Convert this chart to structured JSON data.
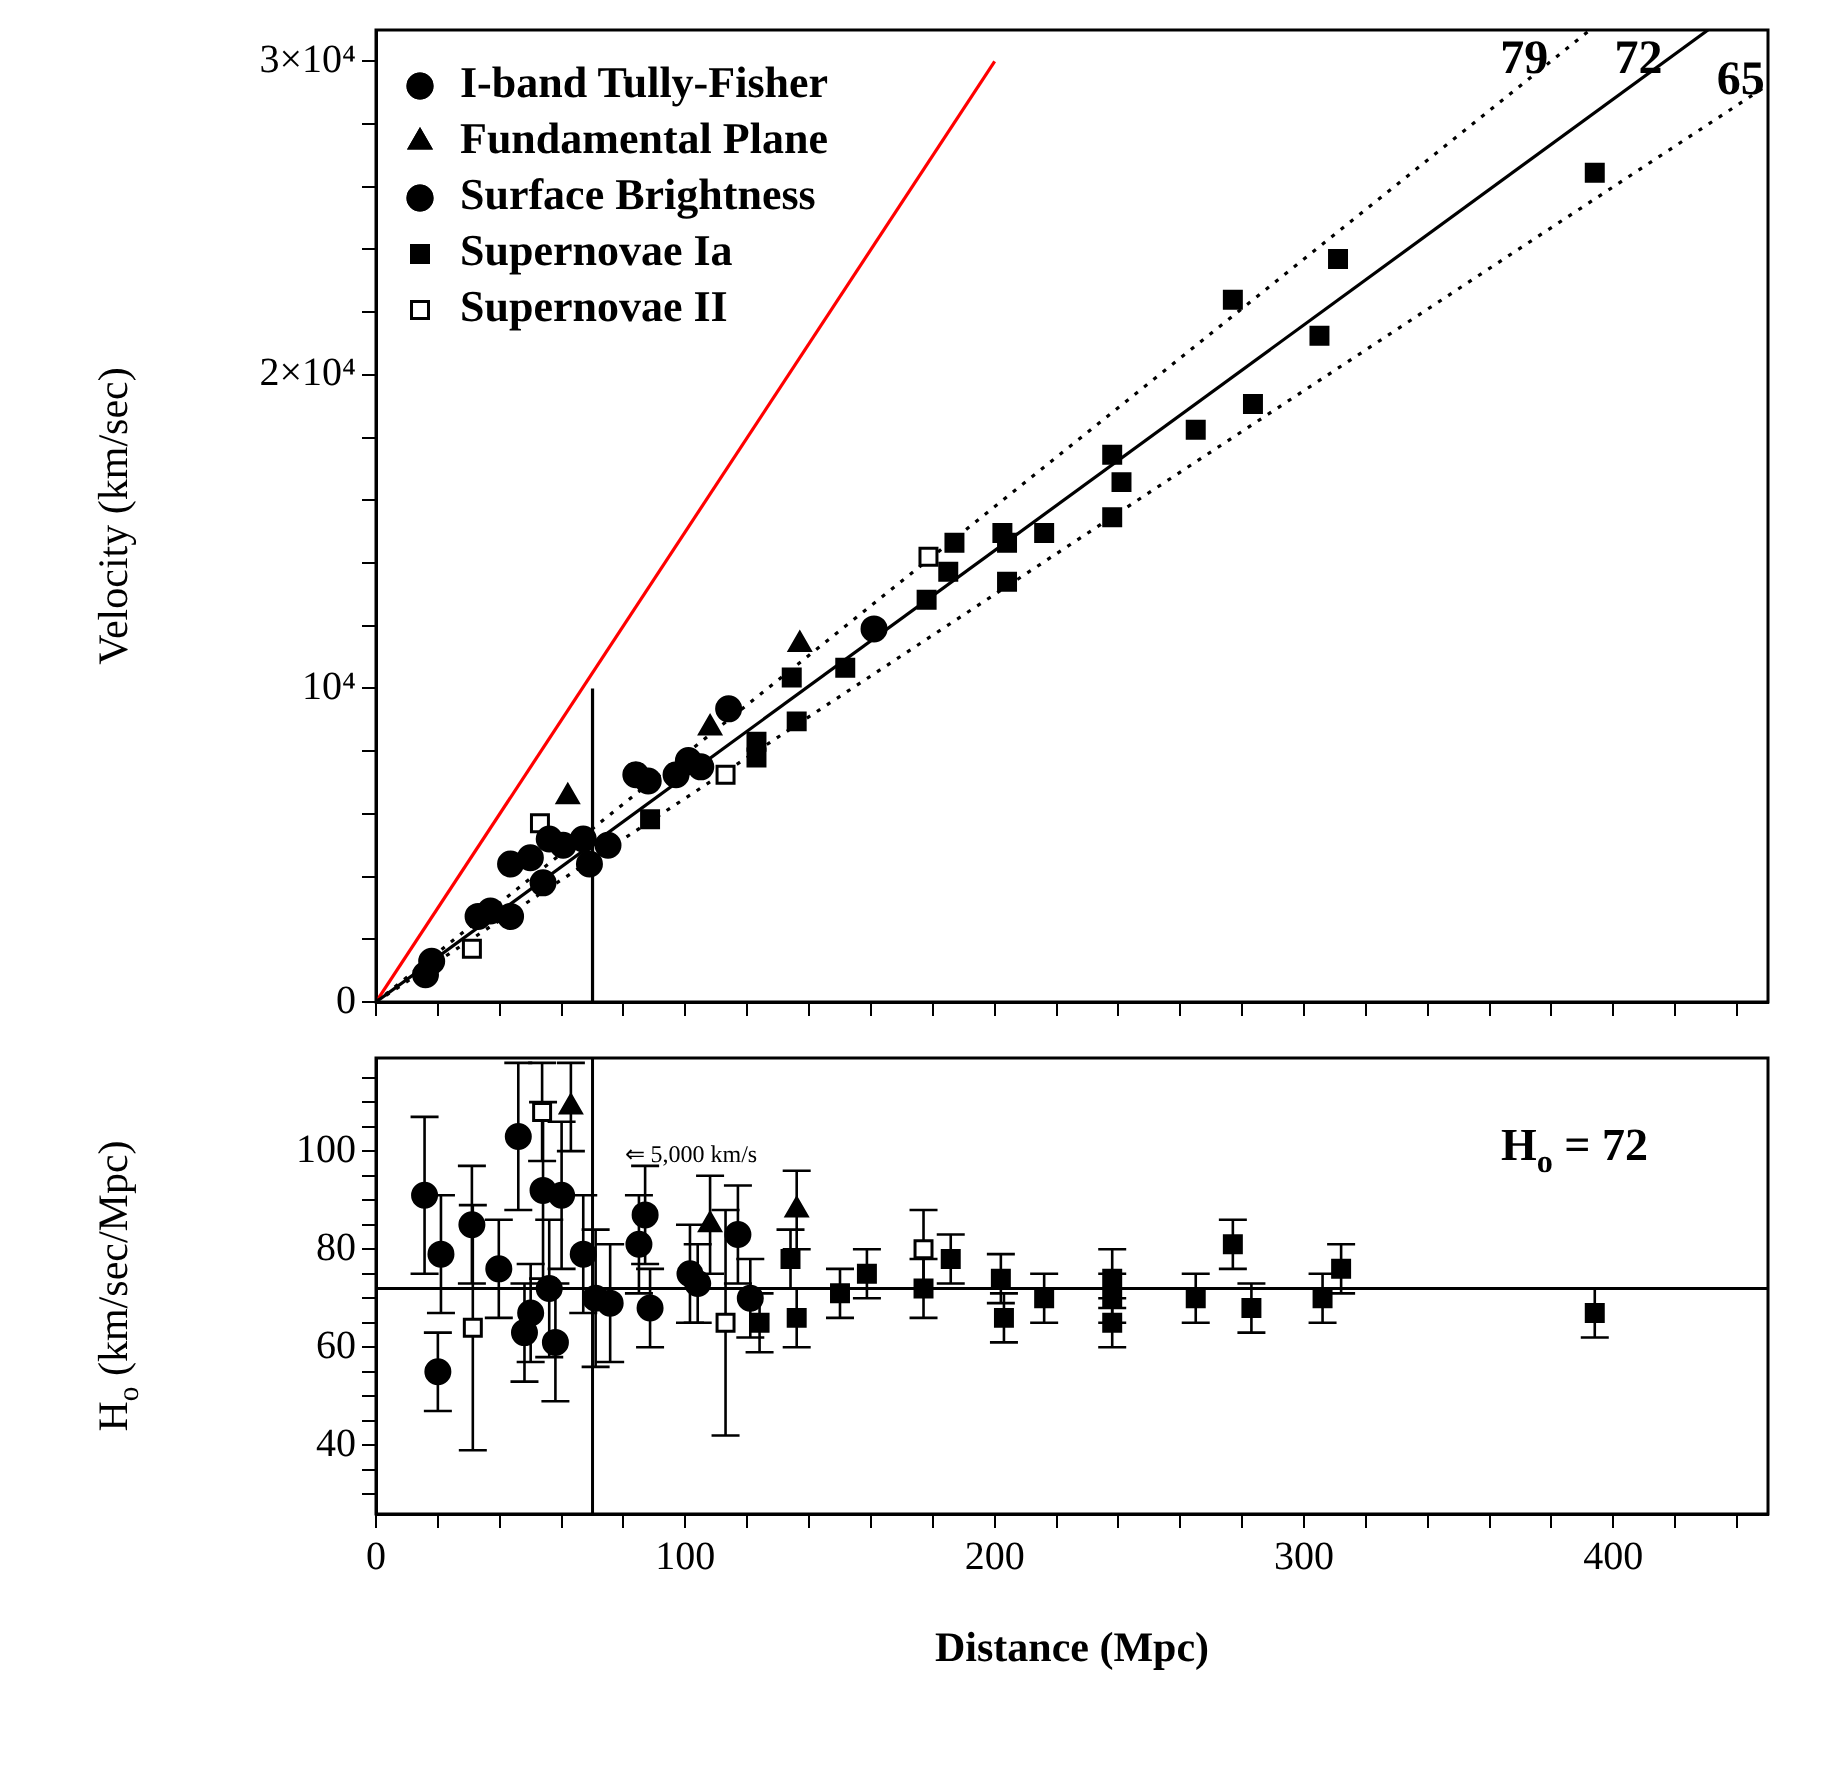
{
  "chart_data": [
    {
      "type": "scatter",
      "ylabel": "Velocity (km/sec)",
      "xlim": [
        0,
        450
      ],
      "ylim": [
        0,
        31000
      ],
      "xticks": [
        0,
        {
          "value": 20,
          "label": null
        },
        {
          "value": 40,
          "label": null
        },
        {
          "value": 60,
          "label": null
        },
        {
          "value": 80,
          "label": null
        },
        100,
        {
          "value": 120,
          "label": null
        },
        {
          "value": 140,
          "label": null
        },
        {
          "value": 160,
          "label": null
        },
        {
          "value": 180,
          "label": null
        },
        200,
        {
          "value": 220,
          "label": null
        },
        {
          "value": 240,
          "label": null
        },
        {
          "value": 260,
          "label": null
        },
        {
          "value": 280,
          "label": null
        },
        300,
        {
          "value": 320,
          "label": null
        },
        {
          "value": 340,
          "label": null
        },
        {
          "value": 360,
          "label": null
        },
        {
          "value": 380,
          "label": null
        },
        400,
        {
          "value": 420,
          "label": null
        },
        {
          "value": 440,
          "label": null
        }
      ],
      "yticks": [
        0,
        {
          "value": 2000,
          "label": null
        },
        {
          "value": 4000,
          "label": null
        },
        {
          "value": 6000,
          "label": null
        },
        {
          "value": 8000,
          "label": null
        },
        {
          "value": 10000,
          "label": "10⁴"
        },
        {
          "value": 12000,
          "label": null
        },
        {
          "value": 14000,
          "label": null
        },
        {
          "value": 16000,
          "label": null
        },
        {
          "value": 18000,
          "label": null
        },
        {
          "value": 20000,
          "label": "2×10⁴"
        },
        {
          "value": 22000,
          "label": null
        },
        {
          "value": 24000,
          "label": null
        },
        {
          "value": 26000,
          "label": null
        },
        {
          "value": 28000,
          "label": null
        },
        {
          "value": 30000,
          "label": "3×10⁴"
        }
      ],
      "tick_labels": "y",
      "legend": "top left",
      "annotations": [
        {
          "text": "79",
          "x": 366,
          "y": 29000
        },
        {
          "text": "72",
          "x": 403,
          "y": 29016
        },
        {
          "text": "65",
          "x": 436,
          "y": 28340
        }
      ],
      "series": [
        {
          "name": "I-band Tully-Fisher",
          "color": "#000000",
          "marker": "circle",
          "x": [
            18,
            16,
            33,
            43.5,
            37,
            49.9,
            54,
            56,
            60.5,
            67,
            69,
            75,
            97,
            101,
            105,
            114
          ],
          "values": [
            1300,
            870,
            2730,
            2730,
            2900,
            4600,
            3800,
            5200,
            5000,
            5200,
            4400,
            5000,
            7250,
            7700,
            7500,
            9350
          ]
        },
        {
          "name": "Fundamental Plane",
          "color": "#000000",
          "marker": "triangle",
          "x": [
            62,
            108,
            137
          ],
          "values": [
            6550,
            8740,
            11400
          ]
        },
        {
          "name": "Surface Brightness",
          "color": "#000000",
          "marker": "circle",
          "x": [
            43.5,
            84,
            88,
            116,
            161
          ],
          "values": [
            4400,
            7250,
            7050,
            null,
            11900
          ]
        },
        {
          "name": "Supernovae Ia",
          "color": "#000000",
          "marker": "square",
          "x": [
            134.4,
            151.7,
            123,
            123,
            136,
            88.6,
            178,
            394,
            311,
            277,
            305,
            283.5,
            265,
            238,
            241,
            238,
            216,
            202.5,
            204,
            187,
            185,
            204
          ],
          "values": [
            10350,
            10660,
            8300,
            7800,
            8950,
            5830,
            12830,
            26450,
            23700,
            22400,
            21250,
            19070,
            18250,
            17450,
            16580,
            15460,
            14960,
            14960,
            14650,
            14650,
            13720,
            13400
          ]
        },
        {
          "name": "Supernovae II",
          "color": "#ffffff",
          "marker": "square",
          "x": [
            53,
            31,
            113,
            178.6
          ],
          "values": [
            5700,
            1700,
            7250,
            14200
          ]
        },
        {
          "type": "line",
          "color": "#000000",
          "line_style": "dotted",
          "x": [
            0,
            392.4
          ],
          "values": [
            0,
            31000
          ]
        },
        {
          "type": "line",
          "color": "#000000",
          "line_style": "solid",
          "x": [
            0,
            430.6
          ],
          "values": [
            0,
            31000
          ]
        },
        {
          "type": "line",
          "color": "#000000",
          "line_style": "dotted",
          "x": [
            0,
            450
          ],
          "values": [
            0,
            29250
          ]
        },
        {
          "type": "line",
          "color": "#ff0000",
          "line_style": "solid",
          "x": [
            0,
            200
          ],
          "values": [
            0,
            30000
          ]
        },
        {
          "type": "line",
          "color": "#000000",
          "line_style": "solid",
          "x": [
            70,
            70
          ],
          "values": [
            0,
            10000
          ]
        }
      ]
    },
    {
      "type": "scatter",
      "xlabel": "Distance (Mpc)",
      "ylabel": "H$_{o}$ (km/sec/Mpc)",
      "xlim": [
        0,
        450
      ],
      "ylim": [
        26,
        119
      ],
      "xticks": [
        0,
        {
          "value": 20,
          "label": null
        },
        {
          "value": 40,
          "label": null
        },
        {
          "value": 60,
          "label": null
        },
        {
          "value": 80,
          "label": null
        },
        100,
        {
          "value": 120,
          "label": null
        },
        {
          "value": 140,
          "label": null
        },
        {
          "value": 160,
          "label": null
        },
        {
          "value": 180,
          "label": null
        },
        200,
        {
          "value": 220,
          "label": null
        },
        {
          "value": 240,
          "label": null
        },
        {
          "value": 260,
          "label": null
        },
        {
          "value": 280,
          "label": null
        },
        300,
        {
          "value": 320,
          "label": null
        },
        {
          "value": 340,
          "label": null
        },
        {
          "value": 360,
          "label": null
        },
        {
          "value": 380,
          "label": null
        },
        400,
        {
          "value": 420,
          "label": null
        },
        {
          "value": 440,
          "label": null
        }
      ],
      "yticks": [
        {
          "value": 30,
          "label": null
        },
        {
          "value": 35,
          "label": null
        },
        40,
        {
          "value": 45,
          "label": null
        },
        {
          "value": 50,
          "label": null
        },
        {
          "value": 55,
          "label": null
        },
        60,
        {
          "value": 65,
          "label": null
        },
        {
          "value": 70,
          "label": null
        },
        {
          "value": 75,
          "label": null
        },
        80,
        {
          "value": 85,
          "label": null
        },
        {
          "value": 90,
          "label": null
        },
        {
          "value": 95,
          "label": null
        },
        100,
        {
          "value": 105,
          "label": null
        },
        {
          "value": 110,
          "label": null
        },
        {
          "value": 115,
          "label": null
        }
      ],
      "annotations": [
        "H$_{o}$ = 72",
        {
          "text": "⇐ 5,000 km/s",
          "x": 70,
          "y": 99
        }
      ],
      "ref_lines": [
        {
          "axis": "y",
          "value": 72
        },
        {
          "axis": "x",
          "value": 70
        }
      ],
      "series": [
        {
          "color": "#000000",
          "marker": "circle",
          "x": [
            15.7,
            21,
            20,
            31,
            39.7,
            46,
            48,
            54,
            56,
            58,
            67,
            71,
            75.7,
            50,
            101.5,
            104,
            117
          ],
          "values": [
            91,
            79,
            55,
            85,
            76,
            103,
            63,
            92,
            72,
            61,
            79,
            70,
            69,
            67,
            75,
            73,
            83
          ],
          "errors": [
            16,
            12,
            8,
            12,
            10,
            15,
            10,
            18,
            14,
            12,
            12,
            14,
            12,
            10,
            10,
            8,
            10
          ]
        },
        {
          "color": "#000000",
          "marker": "triangle",
          "x": [
            63,
            108,
            136
          ],
          "values": [
            109,
            85,
            88
          ],
          "errors": [
            9,
            10,
            8
          ]
        },
        {
          "color": "#000000",
          "marker": "circle",
          "x": [
            60,
            85,
            87,
            88.6,
            121
          ],
          "values": [
            91,
            81,
            87,
            68,
            70
          ],
          "errors": [
            15,
            10,
            10,
            8,
            8
          ]
        },
        {
          "color": "#000000",
          "marker": "square",
          "x": [
            124,
            134,
            136,
            150,
            158.7,
            177,
            185.8,
            201,
            202,
            203,
            216,
            238,
            238,
            238,
            265,
            277,
            283,
            306,
            312,
            394
          ],
          "values": [
            65,
            78,
            66,
            71,
            75,
            72,
            78,
            null,
            74,
            66,
            70,
            74,
            70,
            65,
            70,
            81,
            68,
            70,
            76,
            67
          ],
          "errors": [
            6,
            6,
            6,
            5,
            5,
            6,
            5,
            null,
            5,
            5,
            5,
            6,
            5,
            5,
            5,
            5,
            5,
            5,
            5,
            5
          ]
        },
        {
          "color": "#ffffff",
          "marker": "square",
          "x": [
            31.3,
            53.7,
            113,
            177
          ],
          "values": [
            64,
            108,
            65,
            80
          ],
          "errors": [
            25,
            10,
            23,
            8
          ]
        }
      ]
    }
  ]
}
